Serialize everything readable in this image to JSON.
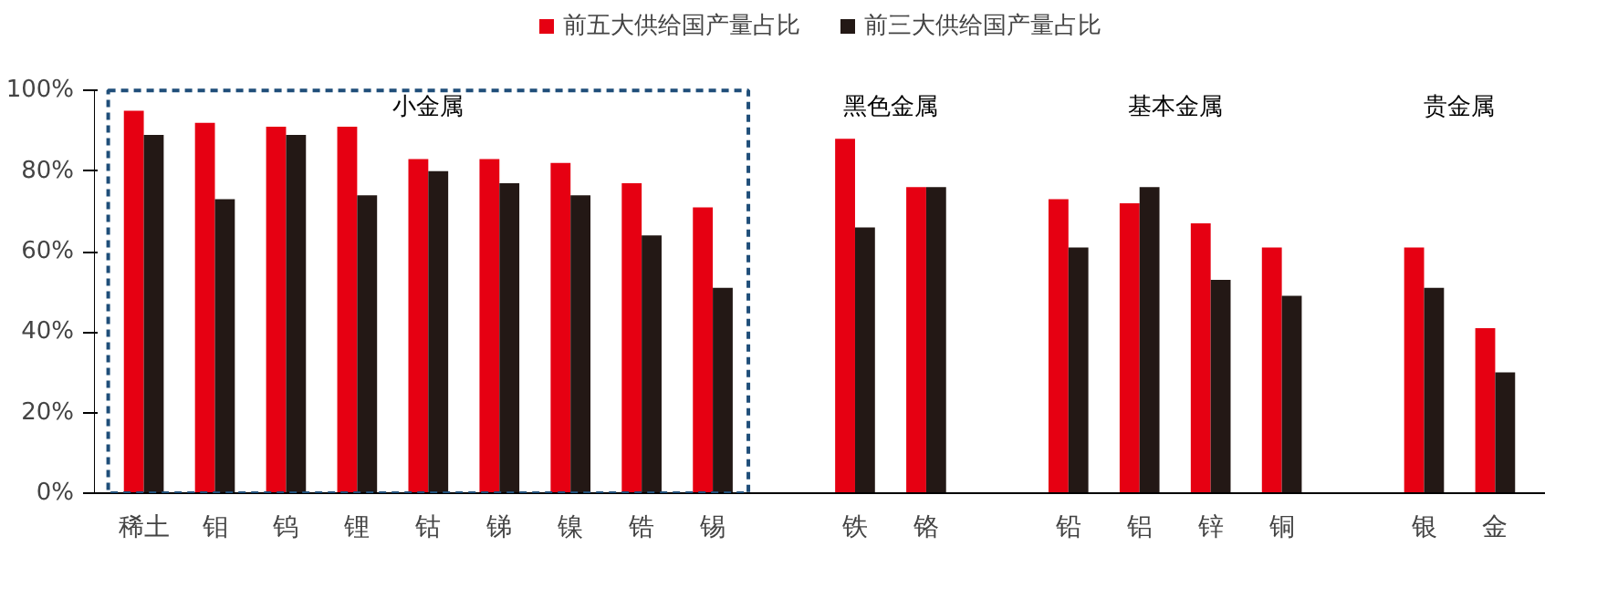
{
  "chart_data": {
    "type": "bar",
    "categories": [
      "稀土",
      "钼",
      "钨",
      "锂",
      "钴",
      "锑",
      "镍",
      "锆",
      "锡",
      null,
      "铁",
      "铬",
      null,
      "铅",
      "铝",
      "锌",
      "铜",
      null,
      "银",
      "金"
    ],
    "series": [
      {
        "name": "前五大供给国产量占比",
        "color": "#e60012",
        "values": [
          95,
          92,
          91,
          91,
          83,
          83,
          82,
          77,
          71,
          null,
          88,
          76,
          null,
          73,
          72,
          67,
          61,
          null,
          61,
          41
        ]
      },
      {
        "name": "前三大供给国产量占比",
        "color": "#231815",
        "values": [
          89,
          73,
          89,
          74,
          80,
          77,
          74,
          64,
          51,
          null,
          66,
          76,
          null,
          61,
          76,
          53,
          49,
          null,
          51,
          30
        ]
      }
    ],
    "ylim": [
      0,
      100
    ],
    "yticks": [
      {
        "value": 0,
        "label": "0%"
      },
      {
        "value": 20,
        "label": "20%"
      },
      {
        "value": 40,
        "label": "40%"
      },
      {
        "value": 60,
        "label": "60%"
      },
      {
        "value": 80,
        "label": "80%"
      },
      {
        "value": 100,
        "label": "100%"
      }
    ],
    "annotations": [
      "小金属",
      "黑色金属",
      "基本金属",
      "贵金属"
    ],
    "legend": "top",
    "grid": false
  }
}
